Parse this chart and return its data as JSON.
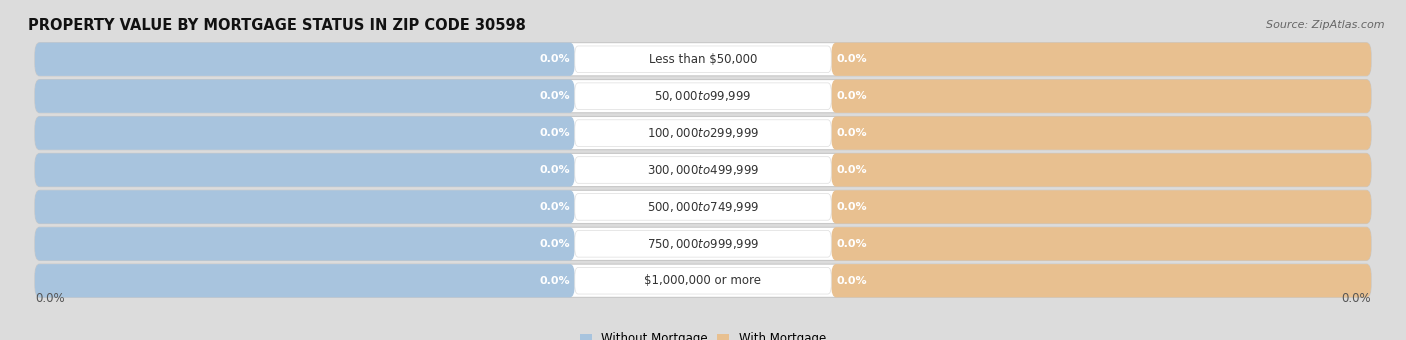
{
  "title": "PROPERTY VALUE BY MORTGAGE STATUS IN ZIP CODE 30598",
  "source": "Source: ZipAtlas.com",
  "categories": [
    "Less than $50,000",
    "$50,000 to $99,999",
    "$100,000 to $299,999",
    "$300,000 to $499,999",
    "$500,000 to $749,999",
    "$750,000 to $999,999",
    "$1,000,000 or more"
  ],
  "without_mortgage": [
    0.0,
    0.0,
    0.0,
    0.0,
    0.0,
    0.0,
    0.0
  ],
  "with_mortgage": [
    0.0,
    0.0,
    0.0,
    0.0,
    0.0,
    0.0,
    0.0
  ],
  "color_without": "#a8c4de",
  "color_with": "#e8c090",
  "bg_color": "#dcdcdc",
  "legend_without": "Without Mortgage",
  "legend_with": "With Mortgage",
  "title_fontsize": 10.5,
  "source_fontsize": 8,
  "axis_label_left": "0.0%",
  "axis_label_right": "0.0%"
}
